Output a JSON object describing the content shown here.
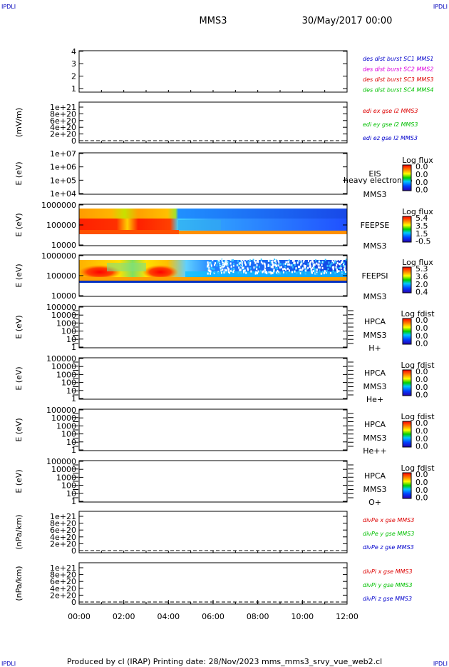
{
  "header": {
    "corner_label": "IPDLI",
    "spacecraft": "MMS3",
    "datetime": "30/May/2017 00:00"
  },
  "footer": {
    "text": "Produced by cl (IRAP)   Printing date: 28/Nov/2023   mms_mms3_srvy_vue_web2.cl"
  },
  "colors": {
    "black": "#000000",
    "red": "#dd0000",
    "green": "#00c000",
    "blue": "#0000cc",
    "magenta": "#dd00dd",
    "corner": "#0000bb"
  },
  "chart_data": [
    {
      "type": "line",
      "ylabel": "",
      "yticks": [
        "1",
        "2",
        "3",
        "4"
      ],
      "x_range_hours": [
        0,
        12
      ],
      "series": [
        {
          "name": "des dist burst SC1 MMS1",
          "color": "#0000cc"
        },
        {
          "name": "des dist burst SC2 MMS2",
          "color": "#dd00dd"
        },
        {
          "name": "des dist burst SC3 MMS3",
          "color": "#dd0000"
        },
        {
          "name": "des dist burst SC4 MMS4",
          "color": "#00c000"
        }
      ]
    },
    {
      "type": "line",
      "ylabel": "(mV/m)",
      "yticks": [
        "1e+21",
        "8e+20",
        "6e+20",
        "4e+20",
        "2e+20",
        "0"
      ],
      "zero_line": true,
      "series": [
        {
          "name": "edi ex gse l2 MMS3",
          "color": "#dd0000"
        },
        {
          "name": "edi ey gse l2 MMS3",
          "color": "#00c000"
        },
        {
          "name": "edi ez gse l2 MMS3",
          "color": "#0000cc"
        }
      ]
    },
    {
      "type": "heatmap",
      "ylabel": "E (eV)",
      "yticks": [
        "1e+07",
        "1e+06",
        "1e+05",
        "1e+04"
      ],
      "instrument": "EIS",
      "spacecraft": "MMS3",
      "overlay_text": "heavy electron to",
      "colorbar": {
        "title": "Log flux",
        "values": [
          "0.0",
          "0.0",
          "0.0",
          "0.0"
        ]
      },
      "data": "empty"
    },
    {
      "type": "heatmap",
      "ylabel": "E (eV)",
      "yticks": [
        "1000000",
        "100000",
        "10000"
      ],
      "instrument": "FEEPSE",
      "spacecraft": "MMS3",
      "colorbar": {
        "title": "Log flux",
        "values": [
          "5.4",
          "3.5",
          "1.5",
          "-0.5"
        ]
      },
      "data": "electron energy spectrogram: intense fluxes 00:00-04:30, weaker noisy fluxes after 04:30 with an orange low-energy band"
    },
    {
      "type": "heatmap",
      "ylabel": "E (eV)",
      "yticks": [
        "1000000",
        "100000",
        "10000"
      ],
      "instrument": "FEEPSI",
      "spacecraft": "MMS3",
      "colorbar": {
        "title": "Log flux",
        "values": [
          "5.3",
          "3.6",
          "2.0",
          "0.4"
        ]
      },
      "data": "ion energy spectrogram: intense arcs 00:00-04:30, low-energy band with sparse high-energy points later"
    },
    {
      "type": "heatmap",
      "ylabel": "E (eV)",
      "yticks": [
        "100000",
        "10000",
        "1000",
        "100",
        "10",
        "1"
      ],
      "instrument": "HPCA",
      "spacecraft": "MMS3",
      "species": "H+",
      "colorbar": {
        "title": "Log fdist",
        "values": [
          "0.0",
          "0.0",
          "0.0",
          "0.0"
        ]
      },
      "data": "empty"
    },
    {
      "type": "heatmap",
      "ylabel": "E (eV)",
      "yticks": [
        "100000",
        "10000",
        "1000",
        "100",
        "10",
        "1"
      ],
      "instrument": "HPCA",
      "spacecraft": "MMS3",
      "species": "He+",
      "colorbar": {
        "title": "Log fdist",
        "values": [
          "0.0",
          "0.0",
          "0.0",
          "0.0"
        ]
      },
      "data": "empty"
    },
    {
      "type": "heatmap",
      "ylabel": "E (eV)",
      "yticks": [
        "100000",
        "10000",
        "1000",
        "100",
        "10",
        "1"
      ],
      "instrument": "HPCA",
      "spacecraft": "MMS3",
      "species": "He++",
      "colorbar": {
        "title": "Log fdist",
        "values": [
          "0.0",
          "0.0",
          "0.0",
          "0.0"
        ]
      },
      "data": "empty"
    },
    {
      "type": "heatmap",
      "ylabel": "E (eV)",
      "yticks": [
        "100000",
        "10000",
        "1000",
        "100",
        "10",
        "1"
      ],
      "instrument": "HPCA",
      "spacecraft": "MMS3",
      "species": "O+",
      "colorbar": {
        "title": "Log fdist",
        "values": [
          "0.0",
          "0.0",
          "0.0",
          "0.0"
        ]
      },
      "data": "empty"
    },
    {
      "type": "line",
      "ylabel": "(nPa/km)",
      "yticks": [
        "1e+21",
        "8e+20",
        "6e+20",
        "4e+20",
        "2e+20",
        "0"
      ],
      "zero_line": true,
      "series": [
        {
          "name": "divPe x gse MMS3",
          "color": "#dd0000"
        },
        {
          "name": "divPe y gse MMS3",
          "color": "#00c000"
        },
        {
          "name": "divPe z gse MMS3",
          "color": "#0000cc"
        }
      ]
    },
    {
      "type": "line",
      "ylabel": "(nPa/km)",
      "yticks": [
        "1e+21",
        "8e+20",
        "6e+20",
        "4e+20",
        "2e+20",
        "0"
      ],
      "zero_line": true,
      "series": [
        {
          "name": "divPi x gse MMS3",
          "color": "#dd0000"
        },
        {
          "name": "divPi y gse MMS3",
          "color": "#00c000"
        },
        {
          "name": "divPi z gse MMS3",
          "color": "#0000cc"
        }
      ]
    }
  ],
  "x_axis": {
    "ticks": [
      "00:00",
      "02:00",
      "04:00",
      "06:00",
      "08:00",
      "10:00",
      "12:00"
    ]
  }
}
